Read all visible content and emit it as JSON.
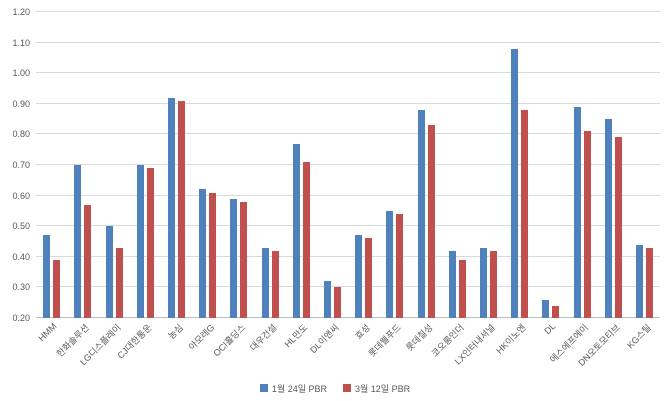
{
  "chart_data": {
    "type": "bar",
    "title": "",
    "xlabel": "",
    "ylabel": "",
    "categories": [
      "HMM",
      "한화솔루션",
      "LG디스플레이",
      "CJ대한통운",
      "농심",
      "아모레G",
      "OCI홀딩스",
      "대우건설",
      "HL만도",
      "DL이앤씨",
      "효성",
      "롯데웰푸드",
      "롯데칠성",
      "코오롱인더",
      "LX인터내셔널",
      "HK이노엔",
      "DL",
      "에스에프에이",
      "DN오토모티브",
      "KG스틸"
    ],
    "series": [
      {
        "name": "1월 24일 PBR",
        "color": "#4F81BD",
        "values": [
          0.47,
          0.7,
          0.5,
          0.7,
          0.92,
          0.62,
          0.59,
          0.43,
          0.77,
          0.32,
          0.47,
          0.55,
          0.88,
          0.42,
          0.43,
          1.08,
          0.26,
          0.89,
          0.85,
          0.44
        ]
      },
      {
        "name": "3월 12일 PBR",
        "color": "#C0504D",
        "values": [
          0.39,
          0.57,
          0.43,
          0.69,
          0.91,
          0.61,
          0.58,
          0.42,
          0.71,
          0.3,
          0.46,
          0.54,
          0.83,
          0.39,
          0.42,
          0.88,
          0.24,
          0.81,
          0.79,
          0.43
        ]
      }
    ],
    "ylim": [
      0.2,
      1.2
    ],
    "yticks": [
      0.2,
      0.3,
      0.4,
      0.5,
      0.6,
      0.7,
      0.8,
      0.9,
      1.0,
      1.1,
      1.2
    ],
    "grid": true,
    "legend_position": "bottom"
  }
}
